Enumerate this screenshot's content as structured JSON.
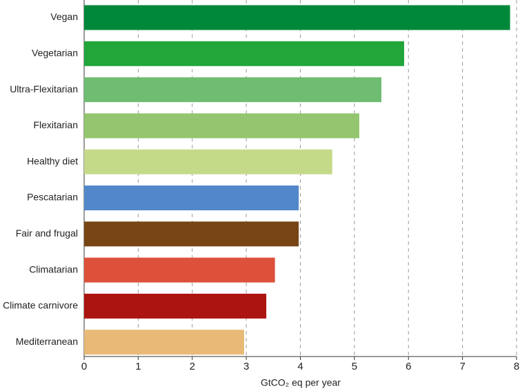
{
  "chart_data": {
    "type": "barh",
    "x_label": "GtCO₂ eq per year",
    "categories": [
      "Vegan",
      "Vegetarian",
      "Ultra-Flexitarian",
      "Flexitarian",
      "Healthy diet",
      "Pescatarian",
      "Fair and frugal",
      "Climatarian",
      "Climate carnivore",
      "Mediterranean"
    ],
    "values": [
      7.88,
      5.92,
      5.5,
      5.09,
      4.59,
      3.97,
      3.97,
      3.53,
      3.37,
      2.96
    ],
    "colors": [
      "#00883a",
      "#22a63a",
      "#6fbd72",
      "#93c66e",
      "#c5da88",
      "#5288c9",
      "#774514",
      "#dd513a",
      "#ac1410",
      "#e8b977"
    ],
    "xlim": [
      0,
      8
    ],
    "xticks": [
      0,
      1,
      2,
      3,
      4,
      5,
      6,
      7,
      8
    ],
    "grid": true
  }
}
